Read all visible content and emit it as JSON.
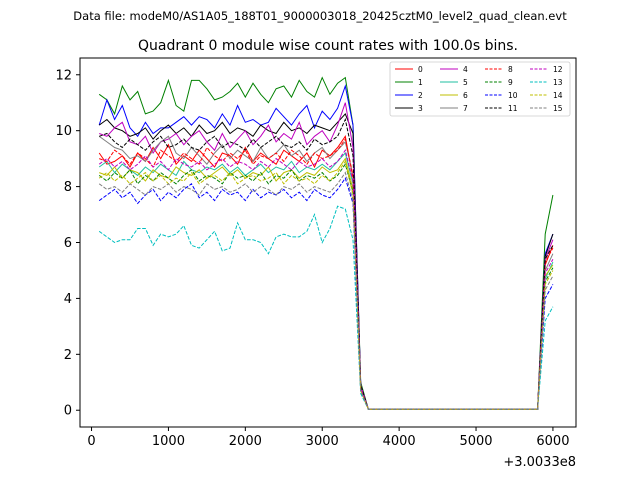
{
  "suptitle": "Data file: modeM0/AS1A05_188T01_9000003018_20425cztM0_level2_quad_clean.evt",
  "chart_data": {
    "type": "line",
    "title": "Quadrant 0 module wise count rates with 100.0s bins.",
    "xlabel": "",
    "ylabel": "",
    "x_offset_label": "+3.0033e8",
    "xlim": [
      -150,
      6300
    ],
    "ylim": [
      -0.6,
      12.6
    ],
    "xticks": [
      0,
      1000,
      2000,
      3000,
      4000,
      5000,
      6000
    ],
    "yticks": [
      0,
      2,
      4,
      6,
      8,
      10,
      12
    ],
    "grid": false,
    "legend_position": "upper-right",
    "legend_columns": 4,
    "x": [
      100,
      200,
      300,
      400,
      500,
      600,
      700,
      800,
      900,
      1000,
      1100,
      1200,
      1300,
      1400,
      1500,
      1600,
      1700,
      1800,
      1900,
      2000,
      2100,
      2200,
      2300,
      2400,
      2500,
      2600,
      2700,
      2800,
      2900,
      3000,
      3100,
      3200,
      3300,
      3400,
      3500,
      3600,
      3700,
      3800,
      3900,
      4000,
      4100,
      4200,
      4300,
      4400,
      4500,
      4600,
      4700,
      4800,
      4900,
      5000,
      5100,
      5200,
      5300,
      5400,
      5500,
      5600,
      5700,
      5800,
      5900,
      6000
    ],
    "series": [
      {
        "name": "0",
        "color": "#ff0000",
        "dash": "solid",
        "values": [
          9.2,
          8.8,
          8.9,
          9.1,
          8.7,
          9.2,
          8.9,
          9.4,
          9.0,
          9.5,
          8.8,
          9.1,
          8.9,
          9.3,
          9.0,
          8.7,
          9.2,
          9.1,
          8.8,
          9.4,
          8.9,
          9.2,
          9.0,
          8.8,
          9.3,
          9.1,
          8.9,
          9.2,
          8.7,
          9.3,
          9.1,
          9.4,
          9.8,
          8.3,
          0.8,
          0.03,
          0.03,
          0.03,
          0.03,
          0.03,
          0.03,
          0.03,
          0.03,
          0.03,
          0.03,
          0.03,
          0.03,
          0.03,
          0.03,
          0.03,
          0.03,
          0.03,
          0.03,
          0.03,
          0.03,
          0.03,
          0.03,
          0.03,
          5.2,
          5.9
        ]
      },
      {
        "name": "1",
        "color": "#008000",
        "dash": "solid",
        "values": [
          11.3,
          11.1,
          10.6,
          11.6,
          11.1,
          11.4,
          10.6,
          10.7,
          11.0,
          11.8,
          10.9,
          10.7,
          11.8,
          11.8,
          11.5,
          11.1,
          11.2,
          11.4,
          11.7,
          11.2,
          11.7,
          11.3,
          11.0,
          11.5,
          11.6,
          11.2,
          11.8,
          11.4,
          11.2,
          11.9,
          11.3,
          11.7,
          11.9,
          10.2,
          1.0,
          0.03,
          0.03,
          0.03,
          0.03,
          0.03,
          0.03,
          0.03,
          0.03,
          0.03,
          0.03,
          0.03,
          0.03,
          0.03,
          0.03,
          0.03,
          0.03,
          0.03,
          0.03,
          0.03,
          0.03,
          0.03,
          0.03,
          0.03,
          6.3,
          7.7
        ]
      },
      {
        "name": "2",
        "color": "#0000ff",
        "dash": "solid",
        "values": [
          10.2,
          11.1,
          10.4,
          10.9,
          10.1,
          9.8,
          10.3,
          9.9,
          10.1,
          10.1,
          10.3,
          10.5,
          10.2,
          10.5,
          10.4,
          10.1,
          10.6,
          10.2,
          10.9,
          10.3,
          10.4,
          10.2,
          10.3,
          10.8,
          10.5,
          10.2,
          10.6,
          10.9,
          10.1,
          10.7,
          10.4,
          10.8,
          11.6,
          10.2,
          0.9,
          0.03,
          0.03,
          0.03,
          0.03,
          0.03,
          0.03,
          0.03,
          0.03,
          0.03,
          0.03,
          0.03,
          0.03,
          0.03,
          0.03,
          0.03,
          0.03,
          0.03,
          0.03,
          0.03,
          0.03,
          0.03,
          0.03,
          0.03,
          5.6,
          6.3
        ]
      },
      {
        "name": "3",
        "color": "#000000",
        "dash": "solid",
        "values": [
          10.2,
          10.4,
          10.1,
          10.0,
          9.8,
          9.9,
          10.1,
          9.7,
          10.0,
          10.2,
          9.9,
          10.1,
          9.8,
          10.2,
          9.9,
          10.0,
          10.3,
          9.9,
          10.1,
          10.0,
          9.8,
          10.2,
          10.0,
          9.9,
          10.3,
          10.0,
          10.1,
          9.9,
          10.2,
          10.1,
          10.0,
          10.3,
          10.6,
          9.9,
          0.9,
          0.03,
          0.03,
          0.03,
          0.03,
          0.03,
          0.03,
          0.03,
          0.03,
          0.03,
          0.03,
          0.03,
          0.03,
          0.03,
          0.03,
          0.03,
          0.03,
          0.03,
          0.03,
          0.03,
          0.03,
          0.03,
          0.03,
          0.03,
          5.5,
          6.3
        ]
      },
      {
        "name": "4",
        "color": "#bf00bf",
        "dash": "solid",
        "values": [
          9.9,
          9.8,
          10.1,
          10.3,
          9.6,
          9.5,
          9.8,
          9.2,
          9.6,
          9.7,
          9.9,
          9.5,
          9.8,
          10.0,
          9.6,
          9.3,
          9.9,
          9.4,
          9.7,
          10.0,
          9.5,
          9.8,
          10.2,
          9.6,
          9.9,
          9.7,
          10.3,
          9.5,
          9.8,
          10.0,
          9.6,
          10.2,
          11.0,
          9.4,
          0.9,
          0.03,
          0.03,
          0.03,
          0.03,
          0.03,
          0.03,
          0.03,
          0.03,
          0.03,
          0.03,
          0.03,
          0.03,
          0.03,
          0.03,
          0.03,
          0.03,
          0.03,
          0.03,
          0.03,
          0.03,
          0.03,
          0.03,
          0.03,
          5.4,
          6.1
        ]
      },
      {
        "name": "5",
        "color": "#1fbfa0",
        "dash": "solid",
        "values": [
          8.7,
          8.9,
          8.5,
          8.8,
          8.6,
          8.4,
          8.7,
          8.5,
          8.8,
          8.6,
          8.4,
          8.9,
          8.6,
          8.5,
          8.7,
          8.6,
          8.8,
          8.5,
          8.7,
          8.4,
          8.6,
          8.8,
          8.5,
          8.7,
          8.6,
          8.9,
          8.5,
          8.7,
          8.6,
          8.8,
          8.6,
          8.9,
          9.2,
          8.1,
          0.8,
          0.03,
          0.03,
          0.03,
          0.03,
          0.03,
          0.03,
          0.03,
          0.03,
          0.03,
          0.03,
          0.03,
          0.03,
          0.03,
          0.03,
          0.03,
          0.03,
          0.03,
          0.03,
          0.03,
          0.03,
          0.03,
          0.03,
          0.03,
          4.7,
          5.3
        ]
      },
      {
        "name": "6",
        "color": "#bfbf00",
        "dash": "solid",
        "values": [
          8.5,
          8.4,
          8.7,
          8.3,
          8.6,
          8.5,
          8.2,
          8.6,
          8.4,
          8.3,
          8.7,
          8.5,
          8.4,
          8.6,
          8.3,
          8.5,
          8.7,
          8.4,
          8.6,
          8.3,
          8.5,
          8.4,
          8.7,
          8.2,
          8.5,
          8.6,
          8.3,
          8.5,
          8.4,
          8.7,
          8.5,
          8.6,
          9.0,
          7.9,
          0.8,
          0.03,
          0.03,
          0.03,
          0.03,
          0.03,
          0.03,
          0.03,
          0.03,
          0.03,
          0.03,
          0.03,
          0.03,
          0.03,
          0.03,
          0.03,
          0.03,
          0.03,
          0.03,
          0.03,
          0.03,
          0.03,
          0.03,
          0.03,
          4.8,
          5.2
        ]
      },
      {
        "name": "7",
        "color": "#808080",
        "dash": "solid",
        "values": [
          9.8,
          9.6,
          9.4,
          9.3,
          9.0,
          9.1,
          8.9,
          9.3,
          9.6,
          9.8,
          9.2,
          9.0,
          9.4,
          9.1,
          8.8,
          9.2,
          9.5,
          9.0,
          9.3,
          9.1,
          8.9,
          9.4,
          9.0,
          9.2,
          9.5,
          9.1,
          9.3,
          8.9,
          9.2,
          9.4,
          9.0,
          9.3,
          9.6,
          8.4,
          0.8,
          0.03,
          0.03,
          0.03,
          0.03,
          0.03,
          0.03,
          0.03,
          0.03,
          0.03,
          0.03,
          0.03,
          0.03,
          0.03,
          0.03,
          0.03,
          0.03,
          0.03,
          0.03,
          0.03,
          0.03,
          0.03,
          0.03,
          0.03,
          5.0,
          5.6
        ]
      },
      {
        "name": "8",
        "color": "#ff0000",
        "dash": "dashed",
        "values": [
          9.0,
          8.9,
          9.3,
          9.1,
          8.8,
          9.2,
          9.0,
          8.7,
          9.3,
          9.1,
          8.9,
          9.2,
          9.0,
          8.8,
          9.4,
          9.1,
          8.9,
          9.2,
          9.0,
          9.3,
          8.8,
          9.1,
          9.0,
          9.2,
          8.9,
          9.3,
          9.1,
          8.8,
          9.2,
          9.0,
          9.1,
          9.3,
          9.7,
          8.4,
          0.8,
          0.03,
          0.03,
          0.03,
          0.03,
          0.03,
          0.03,
          0.03,
          0.03,
          0.03,
          0.03,
          0.03,
          0.03,
          0.03,
          0.03,
          0.03,
          0.03,
          0.03,
          0.03,
          0.03,
          0.03,
          0.03,
          0.03,
          0.03,
          5.3,
          5.8
        ]
      },
      {
        "name": "9",
        "color": "#008000",
        "dash": "dashed",
        "values": [
          8.4,
          8.2,
          8.5,
          8.3,
          8.6,
          8.1,
          8.4,
          8.2,
          8.5,
          8.3,
          8.1,
          8.4,
          8.6,
          8.2,
          8.4,
          8.3,
          8.1,
          8.5,
          8.3,
          8.4,
          8.2,
          8.5,
          8.1,
          8.4,
          8.3,
          8.6,
          8.2,
          8.4,
          8.3,
          8.5,
          8.2,
          8.4,
          8.8,
          7.8,
          0.7,
          0.03,
          0.03,
          0.03,
          0.03,
          0.03,
          0.03,
          0.03,
          0.03,
          0.03,
          0.03,
          0.03,
          0.03,
          0.03,
          0.03,
          0.03,
          0.03,
          0.03,
          0.03,
          0.03,
          0.03,
          0.03,
          0.03,
          0.03,
          4.6,
          5.1
        ]
      },
      {
        "name": "10",
        "color": "#0000ff",
        "dash": "dashed",
        "values": [
          7.5,
          7.7,
          7.9,
          7.6,
          7.8,
          7.4,
          7.7,
          7.9,
          7.5,
          7.8,
          7.6,
          7.9,
          8.1,
          7.6,
          7.8,
          7.5,
          7.9,
          7.7,
          7.8,
          7.5,
          7.9,
          7.6,
          7.8,
          7.7,
          7.9,
          7.6,
          7.8,
          7.5,
          7.9,
          7.7,
          7.6,
          7.9,
          8.3,
          7.4,
          0.7,
          0.03,
          0.03,
          0.03,
          0.03,
          0.03,
          0.03,
          0.03,
          0.03,
          0.03,
          0.03,
          0.03,
          0.03,
          0.03,
          0.03,
          0.03,
          0.03,
          0.03,
          0.03,
          0.03,
          0.03,
          0.03,
          0.03,
          0.03,
          4.0,
          4.5
        ]
      },
      {
        "name": "11",
        "color": "#000000",
        "dash": "dashed",
        "values": [
          9.8,
          9.9,
          9.6,
          9.4,
          9.7,
          9.5,
          9.3,
          9.6,
          9.8,
          9.4,
          9.5,
          9.7,
          9.4,
          9.3,
          9.6,
          9.8,
          9.4,
          9.6,
          9.5,
          9.3,
          9.7,
          9.4,
          9.6,
          9.8,
          9.5,
          9.4,
          9.6,
          9.3,
          9.7,
          9.5,
          9.6,
          9.8,
          10.4,
          9.1,
          0.9,
          0.03,
          0.03,
          0.03,
          0.03,
          0.03,
          0.03,
          0.03,
          0.03,
          0.03,
          0.03,
          0.03,
          0.03,
          0.03,
          0.03,
          0.03,
          0.03,
          0.03,
          0.03,
          0.03,
          0.03,
          0.03,
          0.03,
          0.03,
          5.4,
          5.9
        ]
      },
      {
        "name": "12",
        "color": "#bf00bf",
        "dash": "dashed",
        "values": [
          8.8,
          9.0,
          8.7,
          8.9,
          8.6,
          8.8,
          9.1,
          8.7,
          8.9,
          8.6,
          9.0,
          8.8,
          8.7,
          8.9,
          8.6,
          8.8,
          9.0,
          8.7,
          8.9,
          8.8,
          8.6,
          8.9,
          8.7,
          9.0,
          8.8,
          8.6,
          8.9,
          8.7,
          8.8,
          9.0,
          8.7,
          8.9,
          9.3,
          8.2,
          0.8,
          0.03,
          0.03,
          0.03,
          0.03,
          0.03,
          0.03,
          0.03,
          0.03,
          0.03,
          0.03,
          0.03,
          0.03,
          0.03,
          0.03,
          0.03,
          0.03,
          0.03,
          0.03,
          0.03,
          0.03,
          0.03,
          0.03,
          0.03,
          4.9,
          5.4
        ]
      },
      {
        "name": "13",
        "color": "#00bfbf",
        "dash": "dashed",
        "values": [
          6.4,
          6.2,
          6.0,
          6.1,
          6.1,
          6.5,
          6.5,
          5.9,
          6.3,
          6.2,
          6.3,
          6.6,
          5.9,
          5.8,
          6.1,
          6.4,
          5.7,
          5.8,
          6.7,
          6.1,
          6.1,
          6.0,
          5.6,
          6.2,
          6.3,
          6.2,
          6.2,
          6.4,
          7.0,
          6.0,
          6.5,
          7.3,
          7.2,
          6.1,
          0.6,
          0.03,
          0.03,
          0.03,
          0.03,
          0.03,
          0.03,
          0.03,
          0.03,
          0.03,
          0.03,
          0.03,
          0.03,
          0.03,
          0.03,
          0.03,
          0.03,
          0.03,
          0.03,
          0.03,
          0.03,
          0.03,
          0.03,
          0.03,
          3.2,
          3.7
        ]
      },
      {
        "name": "14",
        "color": "#bfbf00",
        "dash": "dashed",
        "values": [
          8.3,
          8.5,
          8.2,
          8.4,
          8.1,
          8.3,
          8.5,
          8.2,
          8.4,
          8.1,
          8.3,
          8.2,
          8.5,
          8.1,
          8.3,
          8.4,
          8.2,
          8.5,
          8.1,
          8.3,
          8.4,
          8.2,
          8.3,
          8.5,
          8.1,
          8.4,
          8.2,
          8.3,
          8.1,
          8.4,
          8.2,
          8.5,
          8.9,
          7.7,
          0.7,
          0.03,
          0.03,
          0.03,
          0.03,
          0.03,
          0.03,
          0.03,
          0.03,
          0.03,
          0.03,
          0.03,
          0.03,
          0.03,
          0.03,
          0.03,
          0.03,
          0.03,
          0.03,
          0.03,
          0.03,
          0.03,
          0.03,
          0.03,
          4.5,
          5.0
        ]
      },
      {
        "name": "15",
        "color": "#808080",
        "dash": "dashed",
        "values": [
          8.1,
          7.9,
          8.0,
          7.8,
          8.1,
          7.9,
          7.7,
          8.0,
          7.9,
          8.1,
          7.8,
          8.0,
          7.9,
          7.7,
          8.1,
          7.9,
          8.0,
          7.8,
          7.9,
          8.1,
          7.8,
          8.0,
          7.9,
          7.7,
          8.0,
          7.9,
          8.1,
          7.8,
          8.0,
          7.9,
          7.8,
          8.1,
          8.5,
          7.5,
          0.7,
          0.03,
          0.03,
          0.03,
          0.03,
          0.03,
          0.03,
          0.03,
          0.03,
          0.03,
          0.03,
          0.03,
          0.03,
          0.03,
          0.03,
          0.03,
          0.03,
          0.03,
          0.03,
          0.03,
          0.03,
          0.03,
          0.03,
          0.03,
          4.3,
          4.8
        ]
      }
    ]
  }
}
